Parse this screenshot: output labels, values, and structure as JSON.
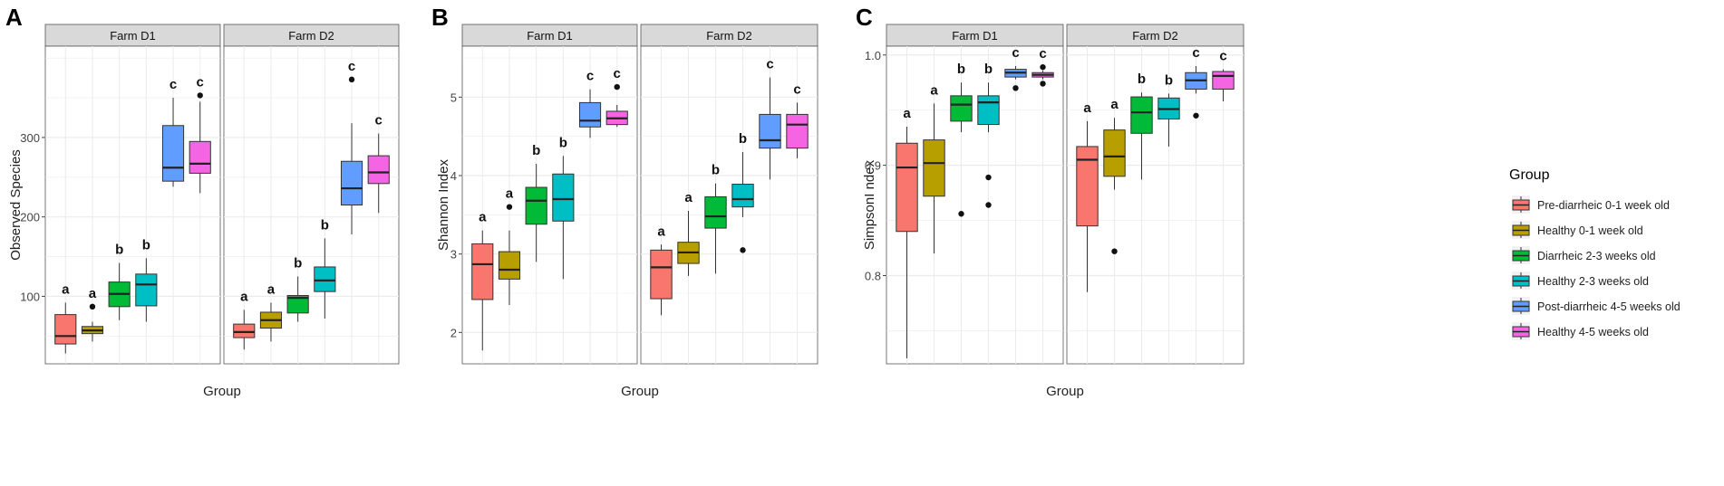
{
  "figure": {
    "groups": [
      "Pre-diarrheic 0-1 week old",
      "Healthy 0-1 week old",
      "Diarrheic 2-3 weeks old",
      "Healthy 2-3 weeks old",
      "Post-diarrheic 4-5 weeks old",
      "Healthy 4-5 weeks old"
    ],
    "colors": [
      "#F8766D",
      "#B79F00",
      "#00BA38",
      "#00BFC4",
      "#619CFF",
      "#F564E3"
    ],
    "legend_title": "Group",
    "facets": [
      "Farm D1",
      "Farm D2"
    ]
  },
  "chart_data": [
    {
      "panel_label": "A",
      "type": "boxplot",
      "xlabel": "Group",
      "ylabel": "Observed Species",
      "ylim": [
        15,
        415
      ],
      "yticks": [
        100,
        200,
        300
      ],
      "facets": [
        {
          "name": "Farm D1",
          "boxes": [
            {
              "min": 28,
              "q1": 40,
              "median": 50,
              "q3": 77,
              "max": 92,
              "outliers": [],
              "letter": "a"
            },
            {
              "min": 43,
              "q1": 53,
              "median": 57,
              "q3": 62,
              "max": 68,
              "outliers": [
                87
              ],
              "letter": "a"
            },
            {
              "min": 70,
              "q1": 87,
              "median": 103,
              "q3": 118,
              "max": 142,
              "outliers": [],
              "letter": "b"
            },
            {
              "min": 68,
              "q1": 88,
              "median": 115,
              "q3": 128,
              "max": 148,
              "outliers": [],
              "letter": "b"
            },
            {
              "min": 238,
              "q1": 245,
              "median": 262,
              "q3": 315,
              "max": 350,
              "outliers": [],
              "letter": "c"
            },
            {
              "min": 230,
              "q1": 255,
              "median": 267,
              "q3": 295,
              "max": 345,
              "outliers": [
                353
              ],
              "letter": "c"
            }
          ]
        },
        {
          "name": "Farm D2",
          "boxes": [
            {
              "min": 33,
              "q1": 48,
              "median": 55,
              "q3": 65,
              "max": 83,
              "outliers": [],
              "letter": "a"
            },
            {
              "min": 43,
              "q1": 60,
              "median": 70,
              "q3": 80,
              "max": 92,
              "outliers": [],
              "letter": "a"
            },
            {
              "min": 68,
              "q1": 79,
              "median": 98,
              "q3": 101,
              "max": 125,
              "outliers": [],
              "letter": "b"
            },
            {
              "min": 72,
              "q1": 106,
              "median": 120,
              "q3": 137,
              "max": 173,
              "outliers": [],
              "letter": "b"
            },
            {
              "min": 178,
              "q1": 215,
              "median": 236,
              "q3": 270,
              "max": 318,
              "outliers": [
                373
              ],
              "letter": "c"
            },
            {
              "min": 205,
              "q1": 242,
              "median": 256,
              "q3": 277,
              "max": 305,
              "outliers": [],
              "letter": "c"
            }
          ]
        }
      ]
    },
    {
      "panel_label": "B",
      "type": "boxplot",
      "xlabel": "Group",
      "ylabel": "Shannon Index",
      "ylim": [
        1.6,
        5.65
      ],
      "yticks": [
        2,
        3,
        4,
        5
      ],
      "facets": [
        {
          "name": "Farm D1",
          "boxes": [
            {
              "min": 1.77,
              "q1": 2.42,
              "median": 2.87,
              "q3": 3.13,
              "max": 3.3,
              "outliers": [],
              "letter": "a"
            },
            {
              "min": 2.35,
              "q1": 2.68,
              "median": 2.8,
              "q3": 3.03,
              "max": 3.3,
              "outliers": [
                3.6
              ],
              "letter": "a"
            },
            {
              "min": 2.9,
              "q1": 3.38,
              "median": 3.68,
              "q3": 3.85,
              "max": 4.15,
              "outliers": [],
              "letter": "b"
            },
            {
              "min": 2.68,
              "q1": 3.42,
              "median": 3.7,
              "q3": 4.02,
              "max": 4.25,
              "outliers": [],
              "letter": "b"
            },
            {
              "min": 4.48,
              "q1": 4.62,
              "median": 4.7,
              "q3": 4.93,
              "max": 5.1,
              "outliers": [],
              "letter": "c"
            },
            {
              "min": 4.62,
              "q1": 4.65,
              "median": 4.73,
              "q3": 4.82,
              "max": 4.9,
              "outliers": [
                5.13
              ],
              "letter": "c"
            }
          ]
        },
        {
          "name": "Farm D2",
          "boxes": [
            {
              "min": 2.22,
              "q1": 2.43,
              "median": 2.83,
              "q3": 3.05,
              "max": 3.12,
              "outliers": [],
              "letter": "a"
            },
            {
              "min": 2.72,
              "q1": 2.88,
              "median": 3.02,
              "q3": 3.15,
              "max": 3.55,
              "outliers": [],
              "letter": "a"
            },
            {
              "min": 2.75,
              "q1": 3.33,
              "median": 3.48,
              "q3": 3.73,
              "max": 3.9,
              "outliers": [],
              "letter": "b"
            },
            {
              "min": 3.47,
              "q1": 3.6,
              "median": 3.7,
              "q3": 3.89,
              "max": 4.3,
              "outliers": [
                3.05
              ],
              "letter": "b"
            },
            {
              "min": 3.95,
              "q1": 4.35,
              "median": 4.45,
              "q3": 4.78,
              "max": 5.25,
              "outliers": [],
              "letter": "c"
            },
            {
              "min": 4.22,
              "q1": 4.35,
              "median": 4.65,
              "q3": 4.78,
              "max": 4.93,
              "outliers": [],
              "letter": "c"
            }
          ]
        }
      ]
    },
    {
      "panel_label": "C",
      "type": "boxplot",
      "xlabel": "Group",
      "ylabel": "SimpsonI ndex",
      "ylim": [
        0.72,
        1.008
      ],
      "yticks": [
        0.8,
        0.9,
        1.0
      ],
      "ytick_labels": [
        "0.8",
        "0.9",
        "1.0"
      ],
      "facets": [
        {
          "name": "Farm D1",
          "boxes": [
            {
              "min": 0.725,
              "q1": 0.84,
              "median": 0.898,
              "q3": 0.92,
              "max": 0.935,
              "outliers": [],
              "letter": "a"
            },
            {
              "min": 0.82,
              "q1": 0.872,
              "median": 0.902,
              "q3": 0.923,
              "max": 0.956,
              "outliers": [],
              "letter": "a"
            },
            {
              "min": 0.93,
              "q1": 0.94,
              "median": 0.955,
              "q3": 0.963,
              "max": 0.975,
              "outliers": [
                0.856
              ],
              "letter": "b"
            },
            {
              "min": 0.93,
              "q1": 0.937,
              "median": 0.957,
              "q3": 0.963,
              "max": 0.975,
              "outliers": [
                0.889,
                0.864
              ],
              "letter": "b"
            },
            {
              "min": 0.978,
              "q1": 0.98,
              "median": 0.984,
              "q3": 0.987,
              "max": 0.99,
              "outliers": [
                0.97
              ],
              "letter": "c"
            },
            {
              "min": 0.978,
              "q1": 0.98,
              "median": 0.982,
              "q3": 0.984,
              "max": 0.986,
              "outliers": [
                0.989,
                0.974
              ],
              "letter": "c"
            }
          ]
        },
        {
          "name": "Farm D2",
          "boxes": [
            {
              "min": 0.785,
              "q1": 0.845,
              "median": 0.905,
              "q3": 0.917,
              "max": 0.94,
              "outliers": [],
              "letter": "a"
            },
            {
              "min": 0.878,
              "q1": 0.89,
              "median": 0.908,
              "q3": 0.932,
              "max": 0.943,
              "outliers": [
                0.822
              ],
              "letter": "a"
            },
            {
              "min": 0.887,
              "q1": 0.929,
              "median": 0.948,
              "q3": 0.962,
              "max": 0.966,
              "outliers": [],
              "letter": "b"
            },
            {
              "min": 0.917,
              "q1": 0.942,
              "median": 0.951,
              "q3": 0.961,
              "max": 0.965,
              "outliers": [],
              "letter": "b"
            },
            {
              "min": 0.965,
              "q1": 0.969,
              "median": 0.977,
              "q3": 0.984,
              "max": 0.99,
              "outliers": [
                0.945
              ],
              "letter": "c"
            },
            {
              "min": 0.958,
              "q1": 0.969,
              "median": 0.981,
              "q3": 0.985,
              "max": 0.987,
              "outliers": [],
              "letter": "c"
            }
          ]
        }
      ]
    }
  ]
}
